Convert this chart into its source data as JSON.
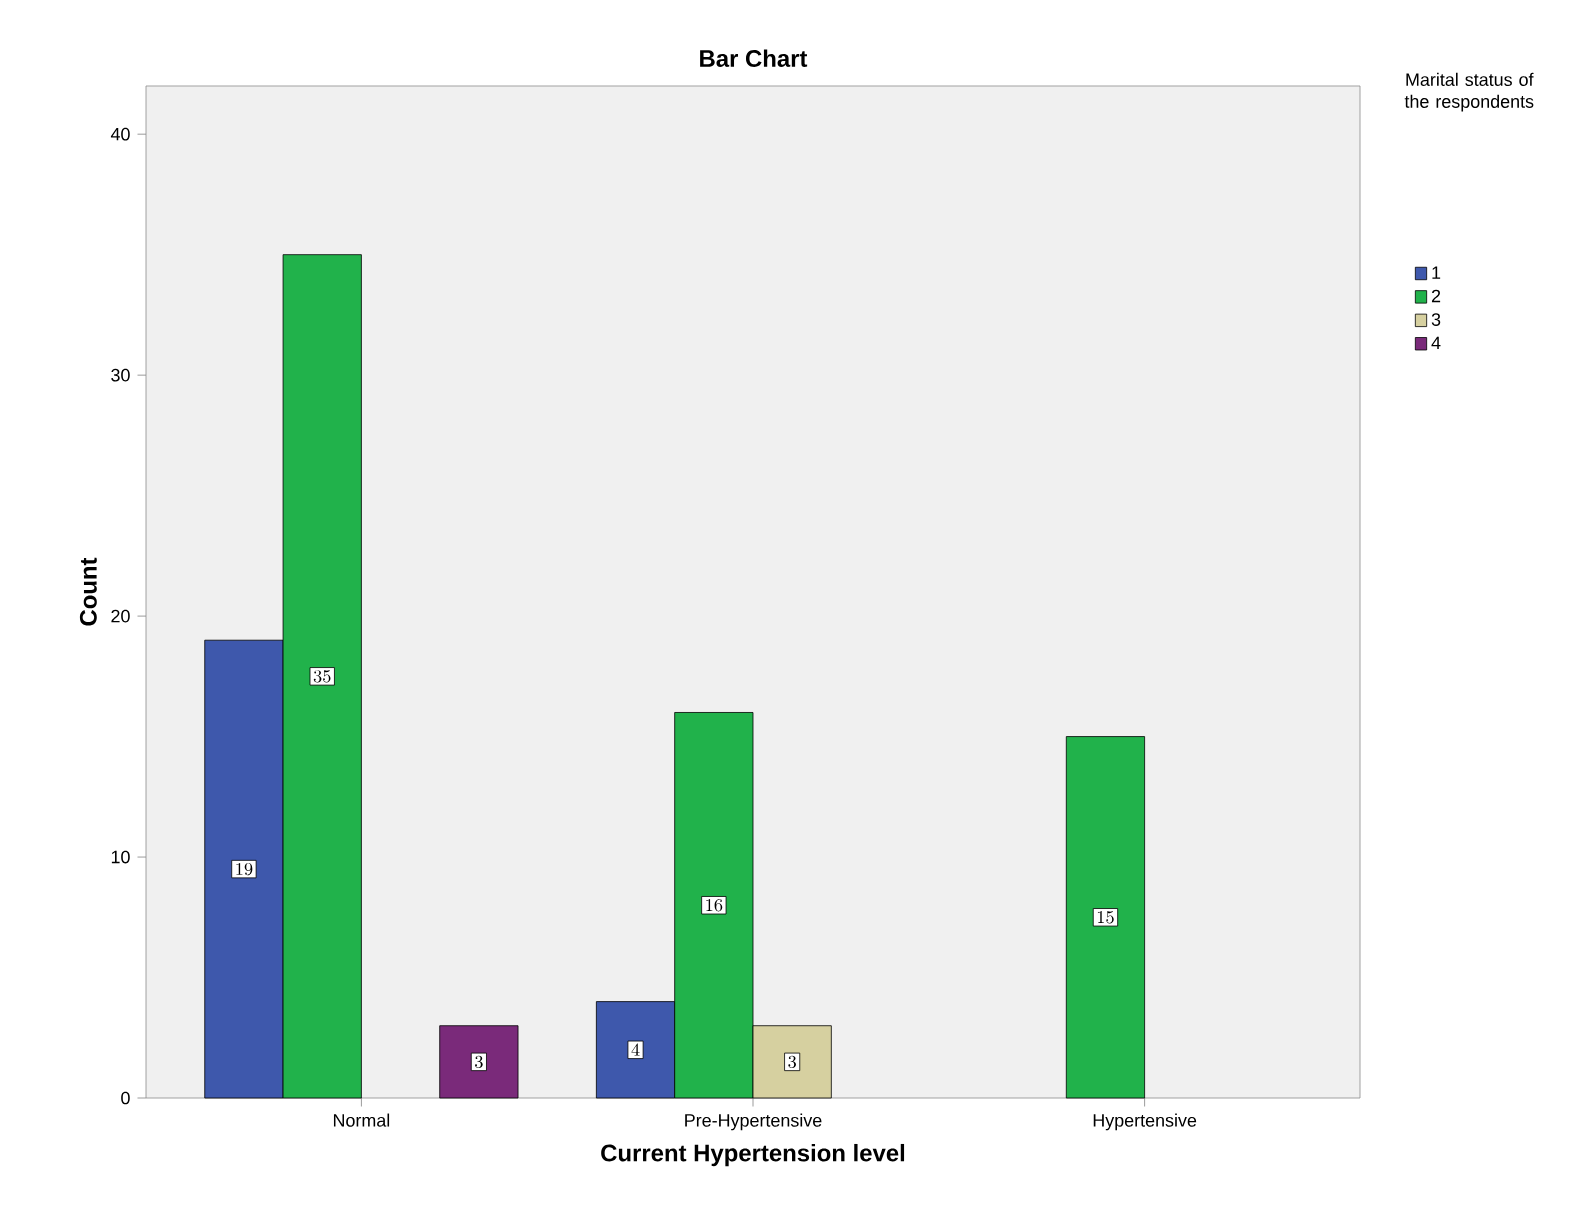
{
  "chart_data": {
    "type": "bar",
    "title": "Bar Chart",
    "xlabel": "Current Hypertension level",
    "ylabel": "Count",
    "legend_title": "Marital status of the respondents",
    "categories": [
      "Normal",
      "Pre-Hypertensive",
      "Hypertensive"
    ],
    "series": [
      {
        "name": "1",
        "color": "#3e58ac",
        "values": [
          19,
          4,
          null
        ]
      },
      {
        "name": "2",
        "color": "#21b24b",
        "values": [
          35,
          16,
          15
        ]
      },
      {
        "name": "3",
        "color": "#d6d0a0",
        "values": [
          null,
          3,
          null
        ]
      },
      {
        "name": "4",
        "color": "#7a2a7a",
        "values": [
          3,
          null,
          null
        ]
      }
    ],
    "ylim": [
      0,
      42
    ],
    "yticks": [
      0,
      10,
      20,
      30,
      40
    ],
    "data_labels": true,
    "legend": "top right"
  }
}
